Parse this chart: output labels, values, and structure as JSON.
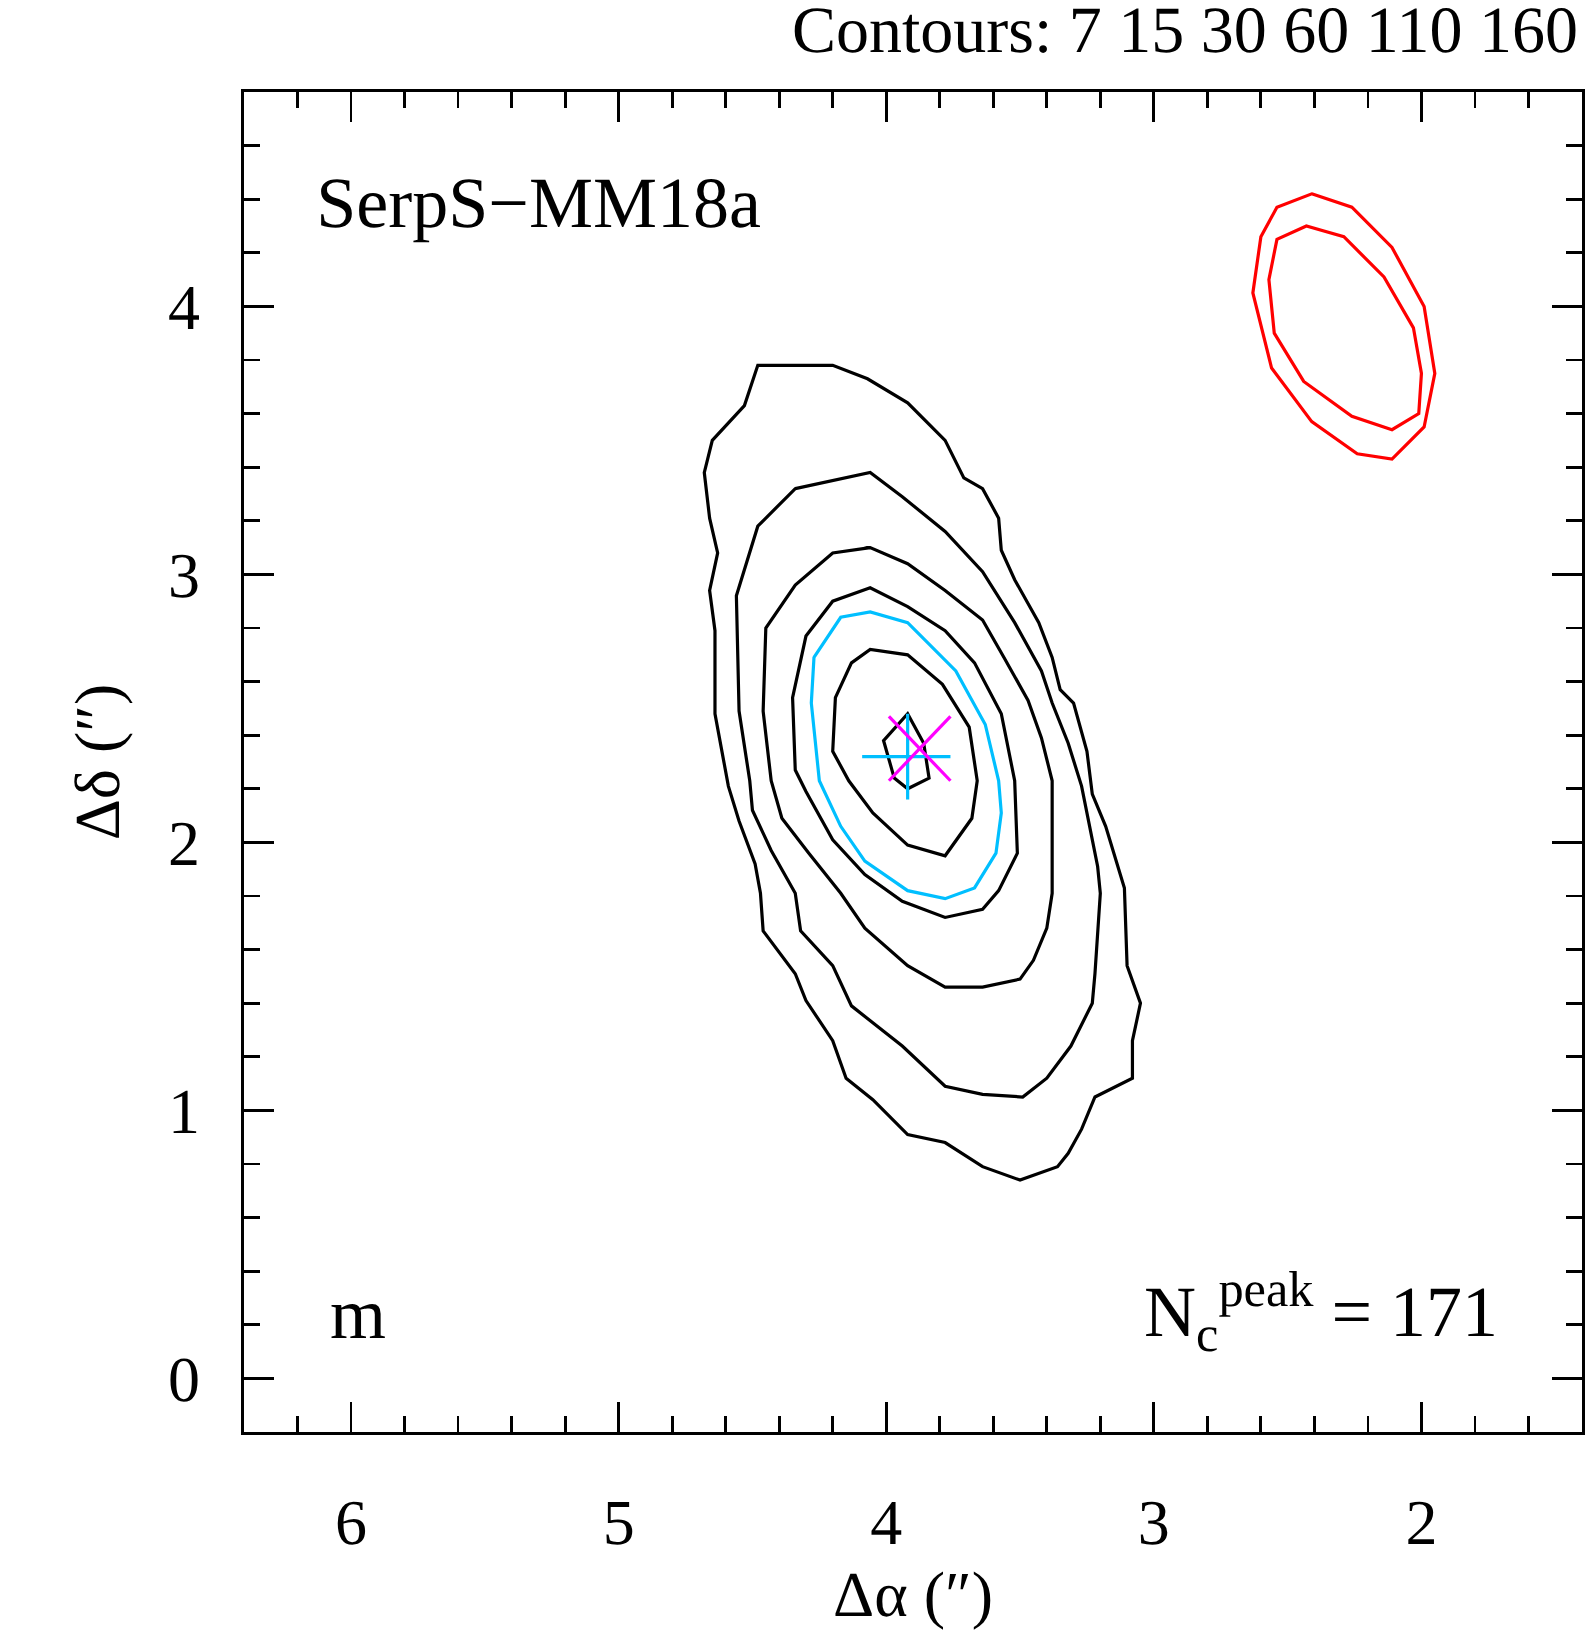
{
  "chart_data": {
    "type": "line",
    "title": "SerpS−MM18a",
    "annotations": [
      "Contours: 7 15 30 60 110 160",
      "m",
      "N$_{c}$$^{peak}$ = 171"
    ],
    "xlabel": "Δα (″)",
    "ylabel": "Δδ (″)",
    "xlim": [
      6.4,
      1.4
    ],
    "ylim": [
      -0.2,
      4.8
    ],
    "xticks": [
      {
        "value": 6.2,
        "label": null
      },
      6,
      {
        "value": 5.8,
        "label": null
      },
      {
        "value": 5.6,
        "label": null
      },
      {
        "value": 5.4,
        "label": null
      },
      {
        "value": 5.2,
        "label": null
      },
      5,
      {
        "value": 4.8,
        "label": null
      },
      {
        "value": 4.6,
        "label": null
      },
      {
        "value": 4.4,
        "label": null
      },
      {
        "value": 4.2,
        "label": null
      },
      4,
      {
        "value": 3.8,
        "label": null
      },
      {
        "value": 3.6,
        "label": null
      },
      {
        "value": 3.4,
        "label": null
      },
      {
        "value": 3.2,
        "label": null
      },
      3,
      {
        "value": 2.8,
        "label": null
      },
      {
        "value": 2.6,
        "label": null
      },
      {
        "value": 2.4,
        "label": null
      },
      {
        "value": 2.2,
        "label": null
      },
      2,
      {
        "value": 1.8,
        "label": null
      },
      {
        "value": 1.6,
        "label": null
      }
    ],
    "yticks": [
      0,
      {
        "value": 0.2,
        "label": null
      },
      {
        "value": 0.4,
        "label": null
      },
      {
        "value": 0.6,
        "label": null
      },
      {
        "value": 0.8,
        "label": null
      },
      1,
      {
        "value": 1.2,
        "label": null
      },
      {
        "value": 1.4,
        "label": null
      },
      {
        "value": 1.6,
        "label": null
      },
      {
        "value": 1.8,
        "label": null
      },
      2,
      {
        "value": 2.2,
        "label": null
      },
      {
        "value": 2.4,
        "label": null
      },
      {
        "value": 2.6,
        "label": null
      },
      {
        "value": 2.8,
        "label": null
      },
      3,
      {
        "value": 3.2,
        "label": null
      },
      {
        "value": 3.4,
        "label": null
      },
      {
        "value": 3.6,
        "label": null
      },
      {
        "value": 3.8,
        "label": null
      },
      4,
      {
        "value": 4.2,
        "label": null
      },
      {
        "value": 4.4,
        "label": null
      },
      {
        "value": 4.6,
        "label": null
      }
    ],
    "grid": false,
    "series": [
      {
        "color": "#000000",
        "x": [
          4.48,
          4.2,
          4.07,
          3.92,
          3.78,
          3.71,
          3.64,
          3.58,
          3.57,
          3.52,
          3.43,
          3.38,
          3.35,
          3.3,
          3.25,
          3.23,
          3.18,
          3.11,
          3.1,
          3.05,
          3.08,
          3.08,
          3.22,
          3.27,
          3.32,
          3.36,
          3.5,
          3.64,
          3.78,
          3.92,
          4.05,
          4.15,
          4.2,
          4.3,
          4.34,
          4.46,
          4.47,
          4.49,
          4.55,
          4.59,
          4.64,
          4.64,
          4.66,
          4.63,
          4.66,
          4.68,
          4.65,
          4.53,
          4.48,
          4.2
        ],
        "values": [
          3.78,
          3.78,
          3.73,
          3.64,
          3.5,
          3.36,
          3.32,
          3.21,
          3.09,
          2.98,
          2.82,
          2.69,
          2.57,
          2.52,
          2.34,
          2.18,
          2.06,
          1.83,
          1.54,
          1.4,
          1.26,
          1.12,
          1.05,
          0.93,
          0.84,
          0.79,
          0.74,
          0.79,
          0.88,
          0.91,
          1.04,
          1.12,
          1.26,
          1.41,
          1.51,
          1.67,
          1.81,
          1.92,
          2.08,
          2.21,
          2.48,
          2.79,
          2.94,
          3.08,
          3.21,
          3.38,
          3.5,
          3.63,
          3.78,
          3.78
        ]
      },
      {
        "color": "#000000",
        "x": [
          4.34,
          4.06,
          3.94,
          3.78,
          3.64,
          3.52,
          3.42,
          3.38,
          3.32,
          3.27,
          3.21,
          3.2,
          3.22,
          3.23,
          3.31,
          3.4,
          3.49,
          3.64,
          3.78,
          3.94,
          4.13,
          4.2,
          4.32,
          4.34,
          4.43,
          4.5,
          4.51,
          4.55,
          4.56,
          4.48,
          4.34,
          4.06
        ],
        "values": [
          3.32,
          3.38,
          3.29,
          3.16,
          3.01,
          2.82,
          2.64,
          2.52,
          2.37,
          2.21,
          1.91,
          1.81,
          1.51,
          1.4,
          1.24,
          1.12,
          1.05,
          1.06,
          1.09,
          1.24,
          1.39,
          1.54,
          1.67,
          1.81,
          1.97,
          2.12,
          2.23,
          2.49,
          2.92,
          3.18,
          3.32,
          3.38
        ]
      },
      {
        "color": "#000000",
        "x": [
          4.2,
          4.06,
          3.92,
          3.78,
          3.64,
          3.56,
          3.47,
          3.42,
          3.38,
          3.38,
          3.4,
          3.45,
          3.5,
          3.64,
          3.78,
          3.92,
          4.08,
          4.17,
          4.29,
          4.39,
          4.43,
          4.46,
          4.45,
          4.34,
          4.2,
          4.06
        ],
        "values": [
          3.08,
          3.1,
          3.04,
          2.94,
          2.83,
          2.69,
          2.53,
          2.39,
          2.23,
          1.81,
          1.68,
          1.56,
          1.49,
          1.46,
          1.46,
          1.54,
          1.68,
          1.81,
          1.96,
          2.09,
          2.23,
          2.49,
          2.8,
          2.96,
          3.08,
          3.1
        ]
      },
      {
        "color": "#000000",
        "x": [
          4.2,
          4.06,
          3.92,
          3.78,
          3.67,
          3.57,
          3.52,
          3.51,
          3.58,
          3.64,
          3.78,
          3.94,
          4.08,
          4.2,
          4.3,
          4.34,
          4.35,
          4.3,
          4.2,
          4.06
        ],
        "values": [
          2.9,
          2.95,
          2.88,
          2.79,
          2.67,
          2.48,
          2.23,
          1.96,
          1.82,
          1.75,
          1.72,
          1.78,
          1.88,
          2.01,
          2.19,
          2.27,
          2.54,
          2.77,
          2.9,
          2.95
        ]
      },
      {
        "color": "#000000",
        "x": [
          4.19,
          4.13,
          4.06,
          3.92,
          3.79,
          3.69,
          3.66,
          3.68,
          3.78,
          3.92,
          4.05,
          4.14,
          4.2,
          4.19,
          4.13
        ],
        "values": [
          2.54,
          2.67,
          2.72,
          2.7,
          2.59,
          2.43,
          2.23,
          2.09,
          1.95,
          1.99,
          2.11,
          2.23,
          2.34,
          2.54,
          2.67
        ]
      },
      {
        "color": "#000000",
        "x": [
          3.92,
          3.86,
          3.84,
          3.92,
          3.97,
          4.01,
          3.92,
          3.86
        ],
        "values": [
          2.48,
          2.37,
          2.24,
          2.2,
          2.24,
          2.38,
          2.48,
          2.37
        ]
      },
      {
        "color": "#00bfff",
        "x": [
          4.27,
          4.17,
          4.06,
          3.92,
          3.74,
          3.63,
          3.58,
          3.57,
          3.59,
          3.67,
          3.78,
          3.92,
          4.08,
          4.17,
          4.25,
          4.28,
          4.27,
          4.17
        ],
        "values": [
          2.69,
          2.84,
          2.86,
          2.82,
          2.64,
          2.44,
          2.23,
          2.11,
          1.96,
          1.83,
          1.79,
          1.82,
          1.93,
          2.06,
          2.23,
          2.52,
          2.69,
          2.84
        ]
      },
      {
        "color": "#ff0000",
        "x": [
          2.41,
          2.26,
          2.11,
          1.99,
          1.95,
          1.99,
          2.11,
          2.24,
          2.41,
          2.56,
          2.63,
          2.6,
          2.54,
          2.41,
          2.26
        ],
        "values": [
          4.42,
          4.37,
          4.22,
          4.0,
          3.75,
          3.55,
          3.43,
          3.45,
          3.57,
          3.77,
          4.05,
          4.26,
          4.37,
          4.42,
          4.37
        ]
      },
      {
        "color": "#ff0000",
        "x": [
          2.43,
          2.29,
          2.14,
          2.03,
          2.0,
          2.01,
          2.11,
          2.26,
          2.44,
          2.55,
          2.57,
          2.54,
          2.43,
          2.29
        ],
        "values": [
          4.3,
          4.26,
          4.11,
          3.92,
          3.75,
          3.6,
          3.54,
          3.59,
          3.72,
          3.9,
          4.1,
          4.25,
          4.3,
          4.26
        ]
      },
      {
        "color": "#00bfff",
        "x": [
          4.09,
          3.76,
          null,
          3.92,
          3.92
        ],
        "values": [
          2.32,
          2.32,
          null,
          2.48,
          2.16
        ]
      },
      {
        "color": "#ff00ff",
        "x": [
          3.99,
          3.76
        ],
        "values": [
          2.47,
          2.23
        ]
      },
      {
        "color": "#ff00ff",
        "x": [
          3.76,
          3.99
        ],
        "values": [
          2.47,
          2.23
        ]
      }
    ]
  }
}
